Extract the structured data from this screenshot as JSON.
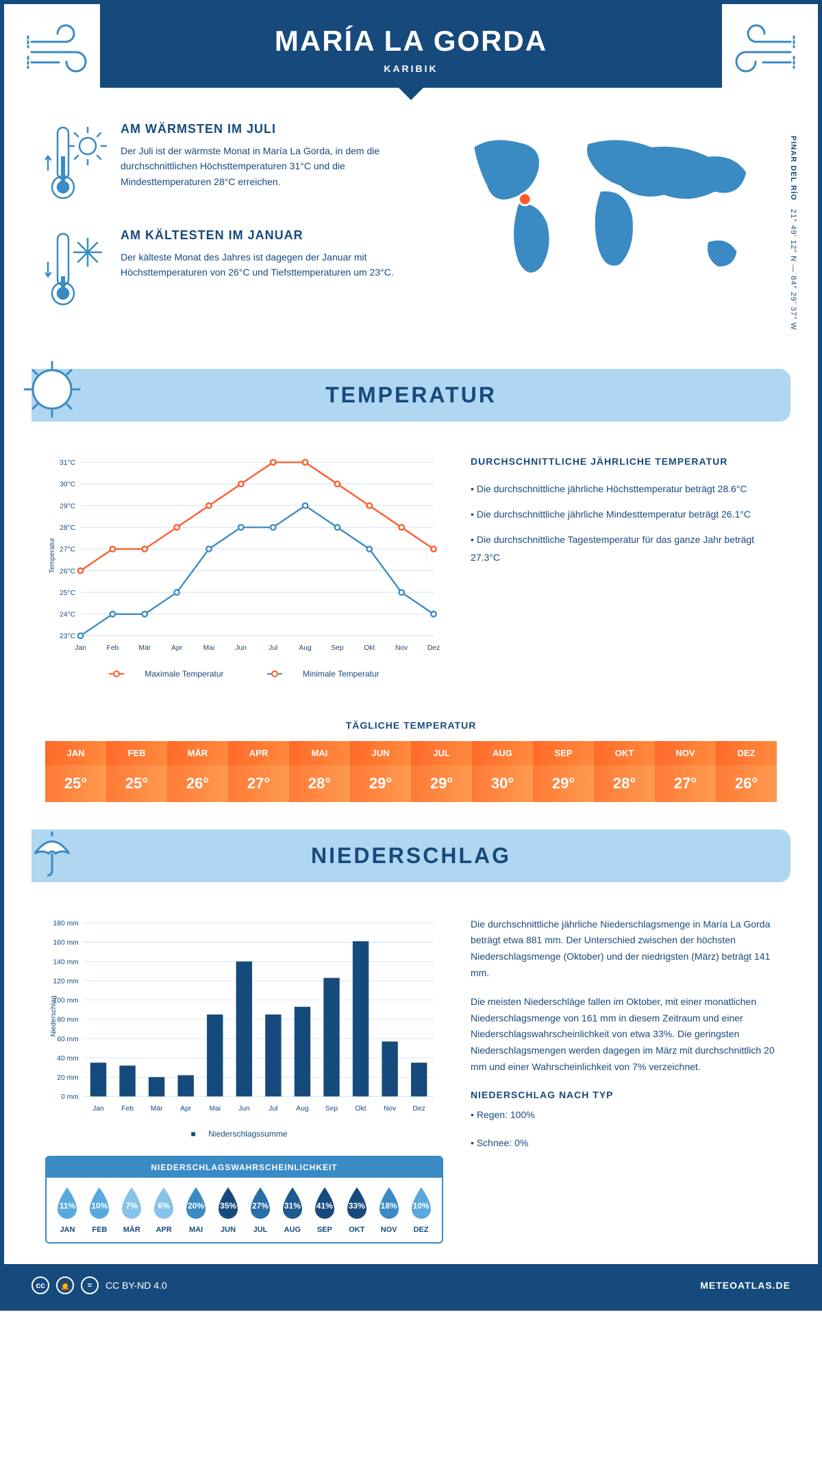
{
  "header": {
    "title": "MARÍA LA GORDA",
    "subtitle": "KARIBIK"
  },
  "coords": {
    "region": "PINAR DEL RÍO",
    "lat": "21° 49' 12\" N",
    "lon": "84° 29' 37\" W"
  },
  "facts": {
    "warm": {
      "title": "AM WÄRMSTEN IM JULI",
      "text": "Der Juli ist der wärmste Monat in María La Gorda, in dem die durchschnittlichen Höchsttemperaturen 31°C und die Mindesttemperaturen 28°C erreichen."
    },
    "cold": {
      "title": "AM KÄLTESTEN IM JANUAR",
      "text": "Der kälteste Monat des Jahres ist dagegen der Januar mit Höchsttemperaturen von 26°C und Tiefsttemperaturen um 23°C."
    }
  },
  "sections": {
    "temperature": "TEMPERATUR",
    "precipitation": "NIEDERSCHLAG"
  },
  "temp_chart": {
    "months": [
      "Jan",
      "Feb",
      "Mär",
      "Apr",
      "Mai",
      "Jun",
      "Jul",
      "Aug",
      "Sep",
      "Okt",
      "Nov",
      "Dez"
    ],
    "max": [
      26,
      27,
      27,
      28,
      29,
      30,
      31,
      31,
      30,
      29,
      28,
      27
    ],
    "min": [
      23,
      24,
      24,
      25,
      27,
      28,
      28,
      29,
      28,
      27,
      25,
      24
    ],
    "ylim": [
      23,
      31
    ],
    "ytick_step": 1,
    "ylabel": "Temperatur",
    "max_color": "#ff5a2b",
    "min_color": "#3a8ac4",
    "max_label": "Maximale Temperatur",
    "min_label": "Minimale Temperatur",
    "grid_color": "#d0e4f3"
  },
  "temp_info": {
    "title": "DURCHSCHNITTLICHE JÄHRLICHE TEMPERATUR",
    "b1": "• Die durchschnittliche jährliche Höchsttemperatur beträgt 28.6°C",
    "b2": "• Die durchschnittliche jährliche Mindesttemperatur beträgt 26.1°C",
    "b3": "• Die durchschnittliche Tagestemperatur für das ganze Jahr beträgt 27.3°C"
  },
  "daily_temp": {
    "title": "TÄGLICHE TEMPERATUR",
    "months": [
      "JAN",
      "FEB",
      "MÄR",
      "APR",
      "MAI",
      "JUN",
      "JUL",
      "AUG",
      "SEP",
      "OKT",
      "NOV",
      "DEZ"
    ],
    "values": [
      "25°",
      "25°",
      "26°",
      "27°",
      "28°",
      "29°",
      "29°",
      "30°",
      "29°",
      "28°",
      "27°",
      "26°"
    ],
    "head_gradient": [
      "#ff6a2b",
      "#ff8a3d"
    ],
    "cell_gradient": [
      "#ff7a35",
      "#ff9a50"
    ]
  },
  "precip_chart": {
    "months": [
      "Jan",
      "Feb",
      "Mär",
      "Apr",
      "Mai",
      "Jun",
      "Jul",
      "Aug",
      "Sep",
      "Okt",
      "Nov",
      "Dez"
    ],
    "values": [
      35,
      32,
      20,
      22,
      85,
      140,
      85,
      93,
      123,
      161,
      57,
      35
    ],
    "ylim": [
      0,
      180
    ],
    "ytick_step": 20,
    "ylabel": "Niederschlag",
    "bar_color": "#164a7c",
    "legend": "Niederschlagssumme",
    "grid_color": "#d0e4f3"
  },
  "precip_info": {
    "p1": "Die durchschnittliche jährliche Niederschlagsmenge in María La Gorda beträgt etwa 881 mm. Der Unterschied zwischen der höchsten Niederschlagsmenge (Oktober) und der niedrigsten (März) beträgt 141 mm.",
    "p2": "Die meisten Niederschläge fallen im Oktober, mit einer monatlichen Niederschlagsmenge von 161 mm in diesem Zeitraum und einer Niederschlagswahrscheinlichkeit von etwa 33%. Die geringsten Niederschlagsmengen werden dagegen im März mit durchschnittlich 20 mm und einer Wahrscheinlichkeit von 7% verzeichnet.",
    "type_title": "NIEDERSCHLAG NACH TYP",
    "rain": "• Regen: 100%",
    "snow": "• Schnee: 0%"
  },
  "prob": {
    "title": "NIEDERSCHLAGSWAHRSCHEINLICHKEIT",
    "months": [
      "JAN",
      "FEB",
      "MÄR",
      "APR",
      "MAI",
      "JUN",
      "JUL",
      "AUG",
      "SEP",
      "OKT",
      "NOV",
      "DEZ"
    ],
    "pct": [
      "11%",
      "10%",
      "7%",
      "6%",
      "20%",
      "35%",
      "27%",
      "31%",
      "41%",
      "33%",
      "18%",
      "10%"
    ],
    "colors": [
      "#58a9dd",
      "#58a9dd",
      "#86c3e8",
      "#86c3e8",
      "#3a8ac4",
      "#164a7c",
      "#2a6ea8",
      "#1c5a90",
      "#164a7c",
      "#164a7c",
      "#3a8ac4",
      "#58a9dd"
    ]
  },
  "footer": {
    "license": "CC BY-ND 4.0",
    "site": "METEOATLAS.DE"
  }
}
